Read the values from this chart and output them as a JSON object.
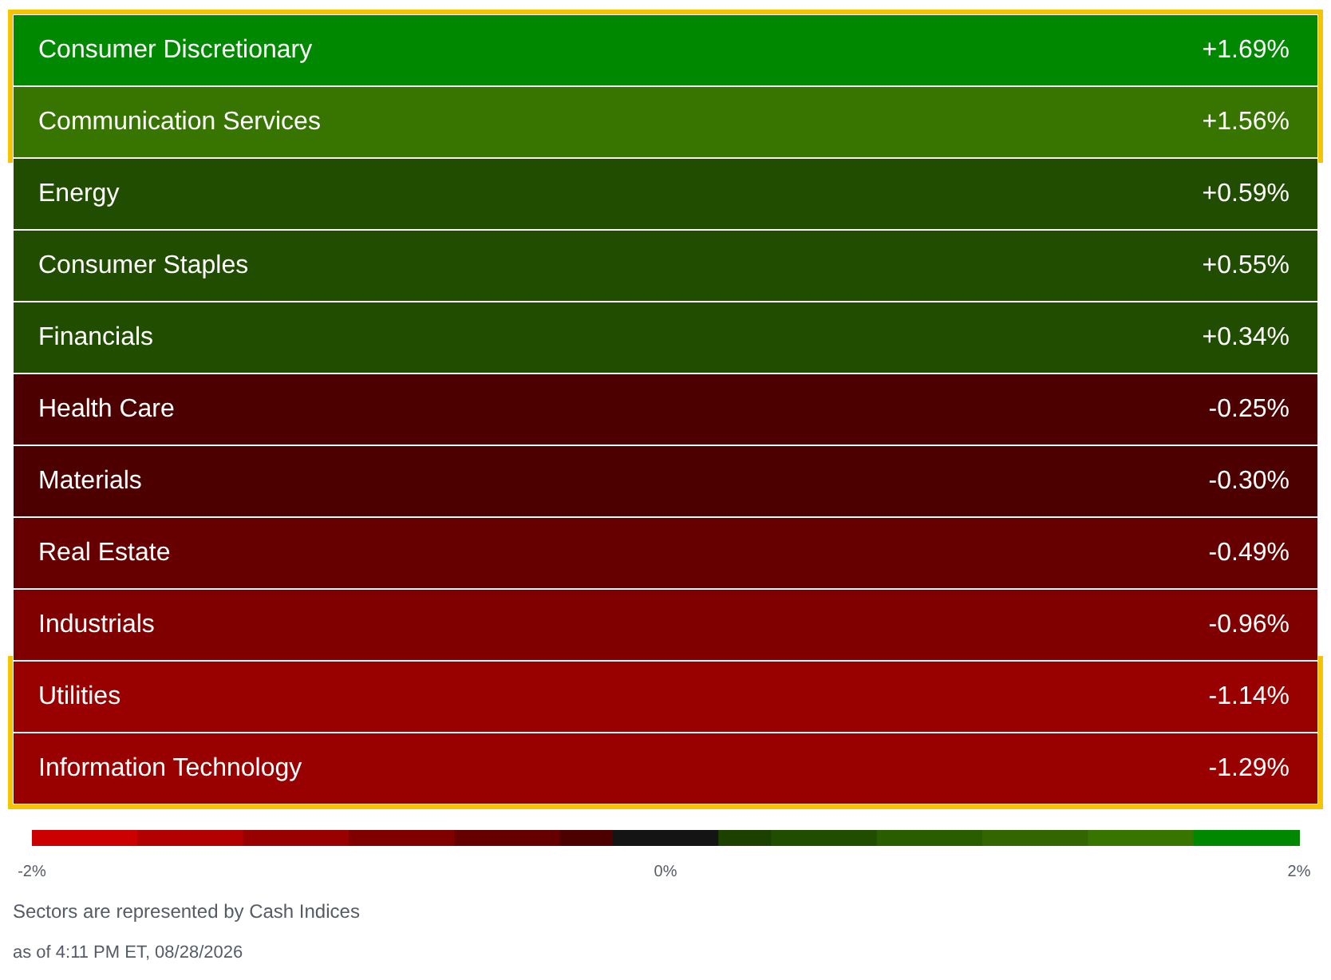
{
  "chart_data": {
    "type": "heatmap",
    "categories": [
      null
    ],
    "y_categories": [
      "Consumer Discretionary",
      "Communication Services",
      "Energy",
      "Consumer Staples",
      "Financials",
      "Health Care",
      "Materials",
      "Real Estate",
      "Industrials",
      "Utilities",
      "Information Technology"
    ],
    "cells": [
      [
        1.69
      ],
      [
        1.56
      ],
      [
        0.59
      ],
      [
        0.55
      ],
      [
        0.34
      ],
      [
        -0.25
      ],
      [
        -0.3
      ],
      [
        -0.49
      ],
      [
        -0.96
      ],
      [
        -1.14
      ],
      [
        -1.29
      ]
    ],
    "cell_labels": [
      [
        "+1.69%"
      ],
      [
        "+1.56%"
      ],
      [
        "+0.59%"
      ],
      [
        "+0.55%"
      ],
      [
        "+0.34%"
      ],
      [
        "-0.25%"
      ],
      [
        "-0.30%"
      ],
      [
        "-0.49%"
      ],
      [
        "-0.96%"
      ],
      [
        "-1.14%"
      ],
      [
        "-1.29%"
      ]
    ],
    "clim": [
      -2,
      2
    ],
    "cticks": [
      {
        "value": -2,
        "label": "-2%"
      },
      {
        "value": 0,
        "label": "0%"
      },
      {
        "value": 2,
        "label": "2%"
      }
    ],
    "bands": [
      {
        "axis": "y",
        "from": "Consumer Discretionary",
        "to": "Communication Services",
        "color": "#f5c400"
      },
      {
        "axis": "y",
        "from": "Utilities",
        "to": "Information Technology",
        "color": "#f5c400"
      }
    ],
    "annotations": [
      "Sectors are represented by Cash Indices",
      "as of 4:11 PM ET, 08/28/2026"
    ]
  }
}
